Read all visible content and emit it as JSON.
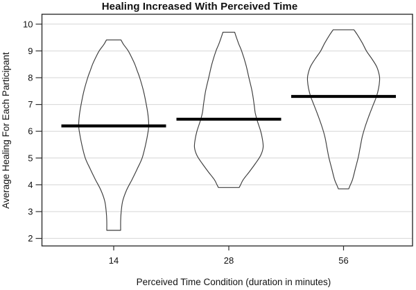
{
  "title": "Healing Increased With Perceived Time",
  "x_axis": {
    "label": "Perceived Time Condition (duration in minutes)",
    "tick_labels": [
      "14",
      "28",
      "56"
    ]
  },
  "y_axis": {
    "label": "Average Healing For Each Participant",
    "tick_labels": [
      "2",
      "3",
      "4",
      "5",
      "6",
      "7",
      "8",
      "9",
      "10"
    ]
  },
  "colors": {
    "background": "#ffffff",
    "text": "#111111",
    "gridline": "#d6d6d6",
    "axis_border": "#2f2f2f",
    "violin_outline": "#3c3c3c",
    "mean_line": "#000000"
  },
  "chart_data": {
    "type": "violin",
    "title": "Healing Increased With Perceived Time",
    "xlabel": "Perceived Time Condition (duration in minutes)",
    "ylabel": "Average Healing For Each Participant",
    "categories": [
      "14",
      "28",
      "56"
    ],
    "yticks": [
      2,
      3,
      4,
      5,
      6,
      7,
      8,
      9,
      10
    ],
    "ylim": [
      1.7,
      10.4
    ],
    "grid": "horizontal-light",
    "legend": "none",
    "means": [
      6.2,
      6.45,
      7.3
    ],
    "profile_units": "each profile point is [y_value, half_width_px_as_drawn]",
    "series": [
      {
        "category": "14",
        "mean": 6.2,
        "min": 2.3,
        "max": 9.4,
        "flat_top": true,
        "flat_bottom": true,
        "profile": [
          [
            9.41,
            10.5
          ],
          [
            9.25,
            14
          ],
          [
            9.0,
            21
          ],
          [
            8.75,
            26
          ],
          [
            8.5,
            30.5
          ],
          [
            8.25,
            34
          ],
          [
            8.0,
            37.5
          ],
          [
            7.5,
            43
          ],
          [
            7.0,
            47
          ],
          [
            6.6,
            49.5
          ],
          [
            6.2,
            50.5
          ],
          [
            5.9,
            49
          ],
          [
            5.5,
            46
          ],
          [
            5.0,
            41
          ],
          [
            4.6,
            34
          ],
          [
            4.2,
            26.5
          ],
          [
            3.8,
            18.5
          ],
          [
            3.4,
            13
          ],
          [
            3.0,
            10.8
          ],
          [
            2.65,
            10
          ],
          [
            2.3,
            10
          ]
        ]
      },
      {
        "category": "28",
        "mean": 6.45,
        "min": 3.9,
        "max": 9.7,
        "flat_top": true,
        "flat_bottom": true,
        "profile": [
          [
            9.7,
            8.5
          ],
          [
            9.5,
            11
          ],
          [
            9.25,
            14.5
          ],
          [
            9.0,
            18.5
          ],
          [
            8.5,
            24.5
          ],
          [
            8.0,
            29
          ],
          [
            7.5,
            33.5
          ],
          [
            7.0,
            36.5
          ],
          [
            6.7,
            38
          ],
          [
            6.4,
            41
          ],
          [
            6.0,
            46
          ],
          [
            5.7,
            48.5
          ],
          [
            5.4,
            49.5
          ],
          [
            5.1,
            46
          ],
          [
            4.8,
            38.5
          ],
          [
            4.5,
            30
          ],
          [
            4.2,
            21
          ],
          [
            4.0,
            17
          ],
          [
            3.9,
            15
          ]
        ]
      },
      {
        "category": "56",
        "mean": 7.3,
        "min": 3.85,
        "max": 9.8,
        "flat_top": true,
        "flat_bottom": true,
        "profile": [
          [
            9.79,
            15
          ],
          [
            9.6,
            20
          ],
          [
            9.3,
            27
          ],
          [
            9.0,
            33
          ],
          [
            8.7,
            41
          ],
          [
            8.4,
            48
          ],
          [
            8.1,
            51.5
          ],
          [
            7.9,
            52
          ],
          [
            7.6,
            50.5
          ],
          [
            7.3,
            47.5
          ],
          [
            7.0,
            43
          ],
          [
            6.6,
            37
          ],
          [
            6.2,
            31.5
          ],
          [
            5.8,
            27
          ],
          [
            5.4,
            24
          ],
          [
            5.0,
            21
          ],
          [
            4.6,
            17
          ],
          [
            4.2,
            13
          ],
          [
            3.95,
            9
          ],
          [
            3.85,
            7.5
          ]
        ]
      }
    ]
  }
}
